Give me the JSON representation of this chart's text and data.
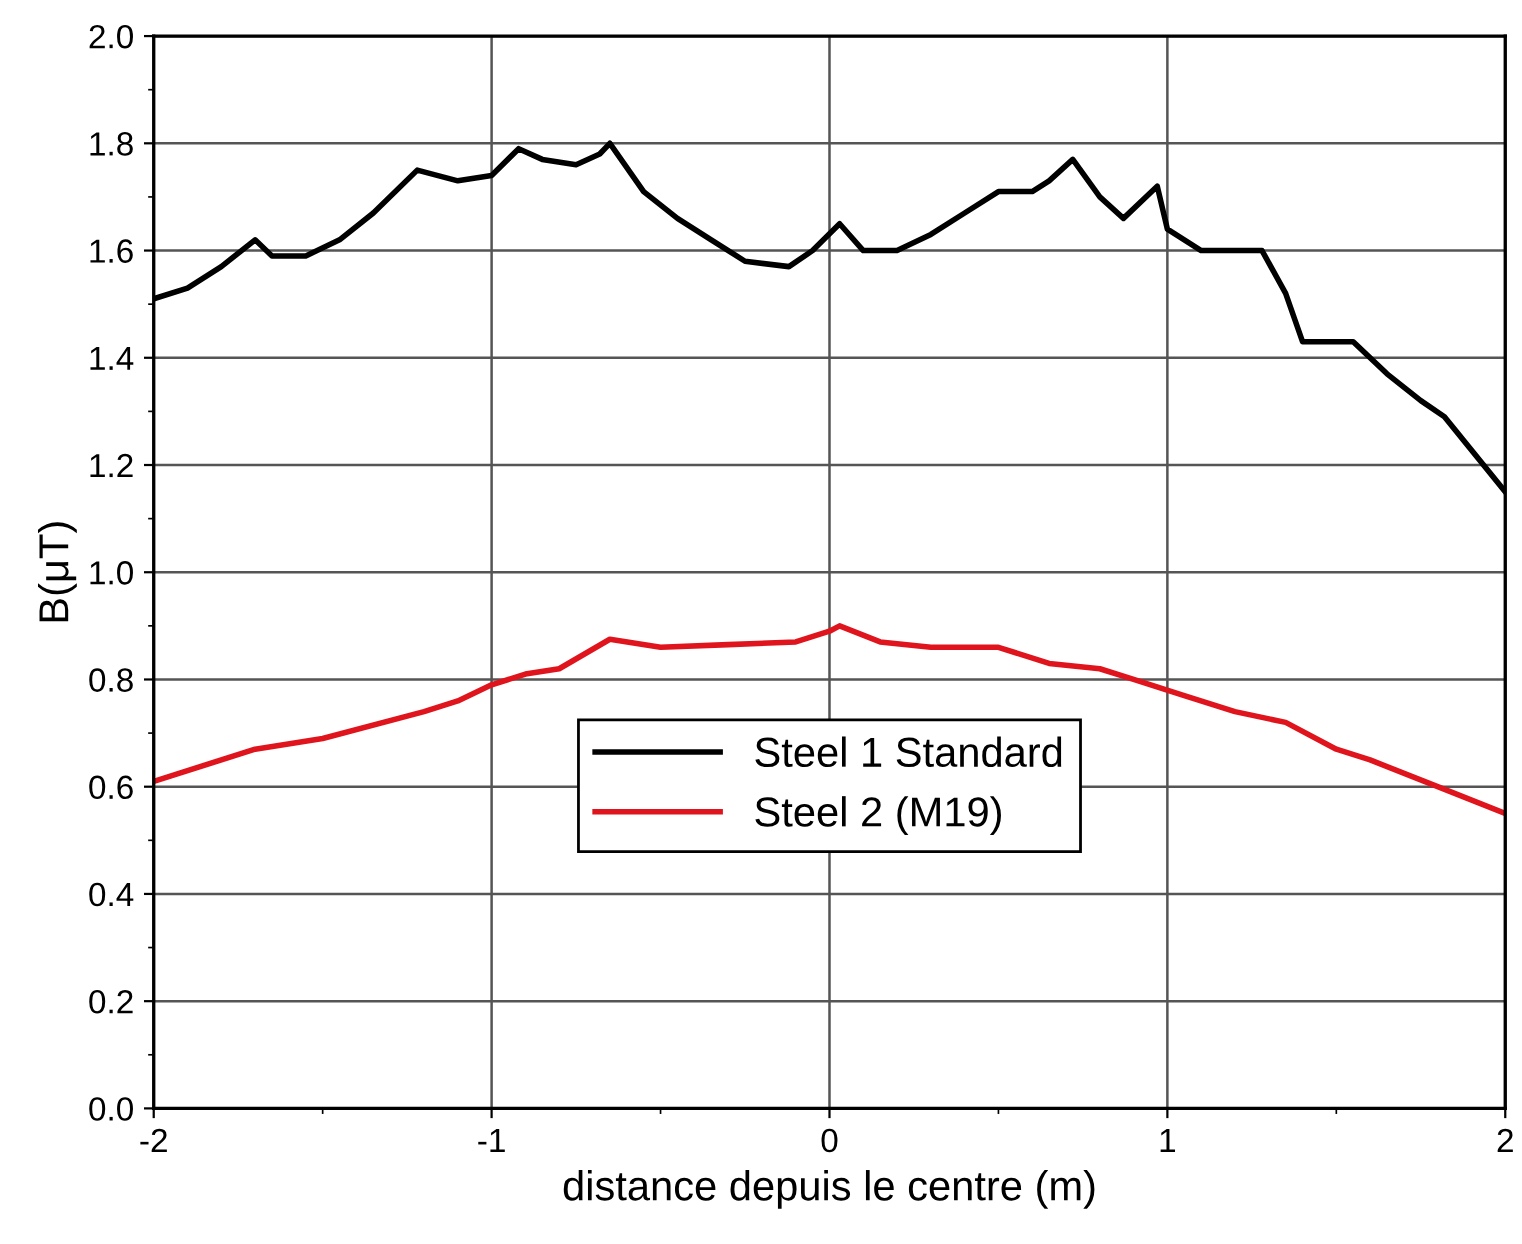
{
  "chart_data": {
    "type": "line",
    "xlabel": "distance depuis le centre (m)",
    "ylabel": "B(μT)",
    "xlim": [
      -2,
      2
    ],
    "xticks": [
      -2,
      -1,
      0,
      1,
      2
    ],
    "ylim": [
      0,
      2
    ],
    "yticks": [
      {
        "value": 0,
        "label": "0.0"
      },
      {
        "value": 0.2,
        "label": "0.2"
      },
      {
        "value": 0.4,
        "label": "0.4"
      },
      {
        "value": 0.6,
        "label": "0.6"
      },
      {
        "value": 0.8,
        "label": "0.8"
      },
      {
        "value": 1.0,
        "label": "1.0"
      },
      {
        "value": 1.2,
        "label": "1.2"
      },
      {
        "value": 1.4,
        "label": "1.4"
      },
      {
        "value": 1.6,
        "label": "1.6"
      },
      {
        "value": 1.8,
        "label": "1.8"
      },
      {
        "value": 2.0,
        "label": "2.0"
      }
    ],
    "grid": true,
    "legend": "bottom",
    "marker": "none",
    "line_style": "solid",
    "series": [
      {
        "name": "Steel 1 Standard",
        "color": "#000000",
        "x": [
          -2,
          -1.9,
          -1.8,
          -1.7,
          -1.65,
          -1.55,
          -1.45,
          -1.35,
          -1.22,
          -1.1,
          -1.0,
          -0.92,
          -0.85,
          -0.75,
          -0.68,
          -0.65,
          -0.55,
          -0.45,
          -0.35,
          -0.25,
          -0.12,
          -0.05,
          0.03,
          0.1,
          0.2,
          0.3,
          0.4,
          0.5,
          0.6,
          0.65,
          0.72,
          0.8,
          0.87,
          0.97,
          1.0,
          1.1,
          1.28,
          1.35,
          1.4,
          1.55,
          1.65,
          1.75,
          1.82,
          2.0
        ],
        "values": [
          1.51,
          1.53,
          1.57,
          1.62,
          1.59,
          1.59,
          1.62,
          1.67,
          1.75,
          1.73,
          1.74,
          1.79,
          1.77,
          1.76,
          1.78,
          1.8,
          1.71,
          1.66,
          1.62,
          1.58,
          1.57,
          1.6,
          1.65,
          1.6,
          1.6,
          1.63,
          1.67,
          1.71,
          1.71,
          1.73,
          1.77,
          1.7,
          1.66,
          1.72,
          1.64,
          1.6,
          1.6,
          1.52,
          1.43,
          1.43,
          1.37,
          1.32,
          1.29,
          1.15
        ]
      },
      {
        "name": "Steel 2 (M19)",
        "color": "#e0141c",
        "x": [
          -2,
          -1.7,
          -1.5,
          -1.2,
          -1.1,
          -1.0,
          -0.9,
          -0.8,
          -0.65,
          -0.5,
          -0.3,
          -0.1,
          0.0,
          0.03,
          0.15,
          0.3,
          0.5,
          0.65,
          0.8,
          0.9,
          1.05,
          1.2,
          1.35,
          1.5,
          1.6,
          1.8,
          2.0
        ],
        "values": [
          0.61,
          0.67,
          0.69,
          0.74,
          0.76,
          0.79,
          0.81,
          0.82,
          0.875,
          0.86,
          0.865,
          0.87,
          0.89,
          0.9,
          0.87,
          0.86,
          0.86,
          0.83,
          0.82,
          0.8,
          0.77,
          0.74,
          0.72,
          0.67,
          0.65,
          0.6,
          0.55
        ]
      }
    ]
  }
}
